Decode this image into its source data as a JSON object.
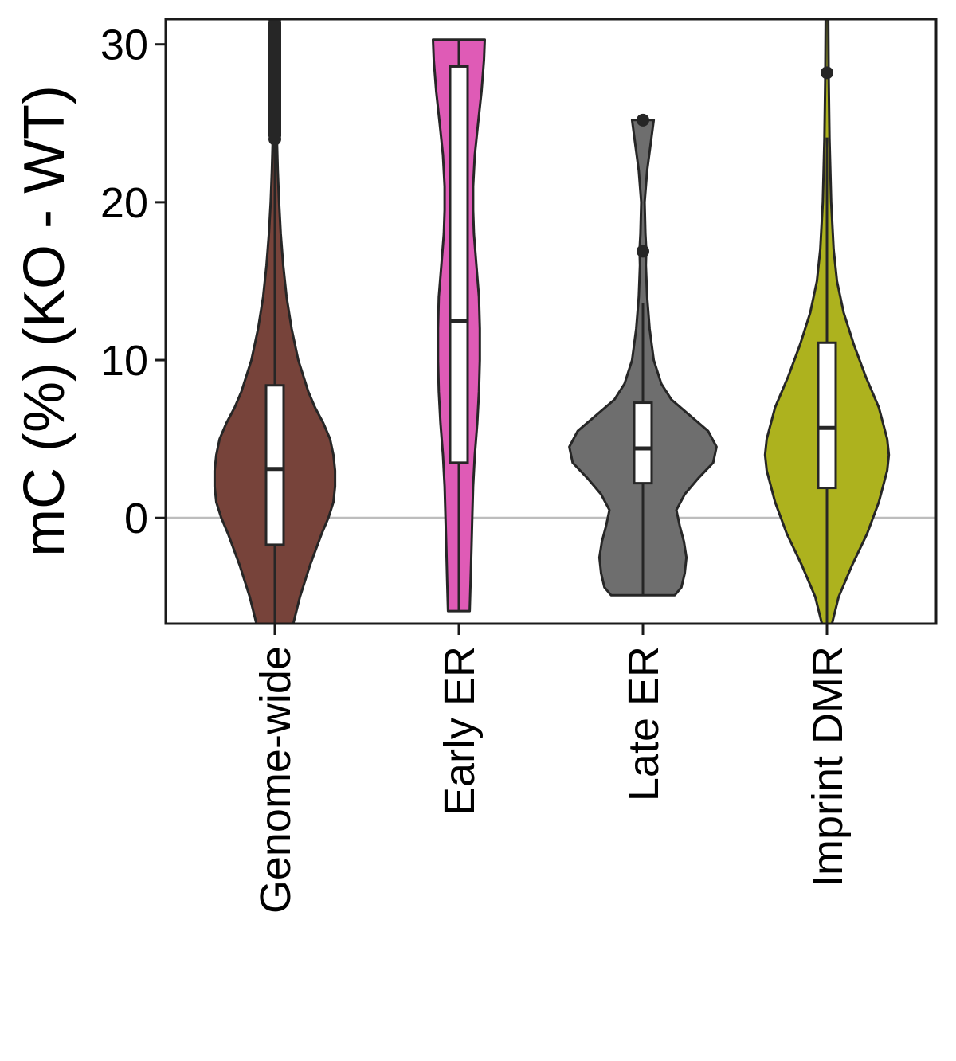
{
  "chart_data": {
    "type": "violin",
    "title": "",
    "xlabel": "",
    "ylabel": "mC (%) (KO - WT)",
    "ylim": [
      -6.7,
      31.6
    ],
    "yticks": [
      0,
      10,
      20,
      30
    ],
    "grid": false,
    "legend": "none",
    "reference_line": {
      "y": 0,
      "color": "#BDBDBD"
    },
    "categories": [
      "Genome-wide",
      "Early ER",
      "Late ER",
      "Imprint DMR"
    ],
    "series": [
      {
        "category": "Genome-wide",
        "color": "#77433A",
        "box": {
          "q1": -1.7,
          "median": 3.1,
          "q3": 8.4,
          "whisker_low": -6.7,
          "whisker_high": 24.0
        },
        "outliers": [
          24,
          25,
          26,
          27,
          28,
          29,
          30,
          31,
          31.6
        ],
        "density": [
          [
            -6.7,
            0.22
          ],
          [
            -5,
            0.3
          ],
          [
            -3,
            0.42
          ],
          [
            -1,
            0.56
          ],
          [
            0,
            0.64
          ],
          [
            1.0,
            0.7
          ],
          [
            2,
            0.72
          ],
          [
            3,
            0.72
          ],
          [
            4,
            0.7
          ],
          [
            5,
            0.66
          ],
          [
            6,
            0.58
          ],
          [
            7,
            0.48
          ],
          [
            8,
            0.4
          ],
          [
            10,
            0.28
          ],
          [
            12,
            0.2
          ],
          [
            14,
            0.14
          ],
          [
            16,
            0.1
          ],
          [
            18,
            0.07
          ],
          [
            20,
            0.05
          ],
          [
            22,
            0.035
          ],
          [
            24,
            0.025
          ],
          [
            28,
            0.015
          ],
          [
            31.6,
            0.01
          ]
        ]
      },
      {
        "category": "Early ER",
        "color": "#DF5BB6",
        "box": {
          "q1": 3.5,
          "median": 12.5,
          "q3": 28.6,
          "whisker_low": -5.9,
          "whisker_high": 30.3
        },
        "outliers": [],
        "density": [
          [
            -5.9,
            0.13
          ],
          [
            -4,
            0.14
          ],
          [
            -2,
            0.15
          ],
          [
            0,
            0.16
          ],
          [
            2,
            0.17
          ],
          [
            4,
            0.19
          ],
          [
            6,
            0.22
          ],
          [
            8,
            0.24
          ],
          [
            10,
            0.25
          ],
          [
            12,
            0.25
          ],
          [
            14,
            0.24
          ],
          [
            16,
            0.21
          ],
          [
            18,
            0.18
          ],
          [
            19.5,
            0.17
          ],
          [
            21,
            0.17
          ],
          [
            23,
            0.19
          ],
          [
            25,
            0.23
          ],
          [
            27,
            0.27
          ],
          [
            29,
            0.3
          ],
          [
            30.3,
            0.31
          ]
        ]
      },
      {
        "category": "Late ER",
        "color": "#6E6E6E",
        "box": {
          "q1": 2.2,
          "median": 4.4,
          "q3": 7.3,
          "whisker_low": -4.9,
          "whisker_high": 13.6
        },
        "outliers": [
          16.9,
          25.2
        ],
        "density": [
          [
            -4.9,
            0.38
          ],
          [
            -4.4,
            0.46
          ],
          [
            -3.5,
            0.5
          ],
          [
            -2.5,
            0.52
          ],
          [
            -1.5,
            0.49
          ],
          [
            -0.5,
            0.44
          ],
          [
            0.5,
            0.4
          ],
          [
            1.5,
            0.5
          ],
          [
            2.5,
            0.66
          ],
          [
            3.5,
            0.84
          ],
          [
            4.5,
            0.88
          ],
          [
            5.5,
            0.78
          ],
          [
            6.5,
            0.56
          ],
          [
            7.5,
            0.34
          ],
          [
            8.5,
            0.22
          ],
          [
            10,
            0.13
          ],
          [
            12,
            0.08
          ],
          [
            14,
            0.05
          ],
          [
            16,
            0.035
          ],
          [
            17,
            0.04
          ],
          [
            18,
            0.03
          ],
          [
            20,
            0.02
          ],
          [
            22,
            0.05
          ],
          [
            24,
            0.1
          ],
          [
            25.2,
            0.13
          ]
        ]
      },
      {
        "category": "Imprint DMR",
        "color": "#ADB21E",
        "box": {
          "q1": 1.9,
          "median": 5.7,
          "q3": 11.1,
          "whisker_low": -6.7,
          "whisker_high": 24.1
        },
        "outliers": [
          28.2
        ],
        "density": [
          [
            -6.7,
            0.06
          ],
          [
            -5,
            0.14
          ],
          [
            -3,
            0.3
          ],
          [
            -1,
            0.48
          ],
          [
            1,
            0.62
          ],
          [
            3,
            0.72
          ],
          [
            4,
            0.74
          ],
          [
            5,
            0.72
          ],
          [
            7,
            0.62
          ],
          [
            9,
            0.46
          ],
          [
            11,
            0.32
          ],
          [
            13,
            0.2
          ],
          [
            15,
            0.12
          ],
          [
            17,
            0.08
          ],
          [
            20,
            0.05
          ],
          [
            24,
            0.03
          ],
          [
            28,
            0.02
          ],
          [
            31.6,
            0.015
          ]
        ]
      }
    ]
  }
}
